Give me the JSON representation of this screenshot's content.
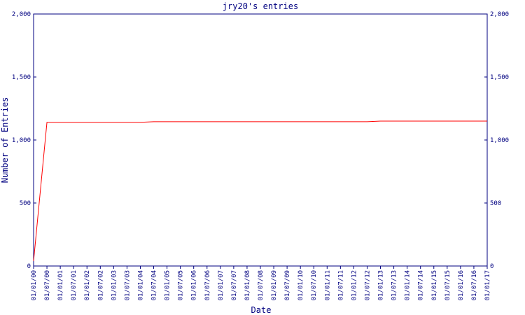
{
  "chart_data": {
    "type": "line",
    "title": "jry20's entries",
    "x_label": "Date",
    "y_label": "Number of Entries",
    "categories": [
      "01/01/00",
      "01/07/00",
      "01/01/01",
      "01/07/01",
      "01/01/02",
      "01/07/02",
      "01/01/03",
      "01/07/03",
      "01/01/04",
      "01/07/04",
      "01/01/05",
      "01/07/05",
      "01/01/06",
      "01/07/06",
      "01/01/07",
      "01/07/07",
      "01/01/08",
      "01/07/08",
      "01/01/09",
      "01/07/09",
      "01/01/10",
      "01/07/10",
      "01/01/11",
      "01/07/11",
      "01/01/12",
      "01/07/12",
      "01/01/13",
      "01/07/13",
      "01/01/14",
      "01/07/14",
      "01/01/15",
      "01/07/15",
      "01/01/16",
      "01/07/16",
      "01/01/17"
    ],
    "series": [
      {
        "name": "Entries",
        "color": "#ff0000",
        "values": [
          40,
          1140,
          1140,
          1140,
          1140,
          1140,
          1140,
          1140,
          1140,
          1145,
          1145,
          1145,
          1145,
          1145,
          1145,
          1145,
          1145,
          1145,
          1145,
          1145,
          1145,
          1145,
          1145,
          1145,
          1145,
          1145,
          1150,
          1150,
          1150,
          1150,
          1150,
          1150,
          1150,
          1150,
          1150
        ]
      }
    ],
    "ylim": [
      0,
      2000
    ],
    "yticks": [
      0,
      500,
      {
        "value": 1000,
        "label": "1,000"
      },
      {
        "value": 1500,
        "label": "1,500"
      },
      {
        "value": 2000,
        "label": "2,000"
      }
    ],
    "right_axis": true
  }
}
